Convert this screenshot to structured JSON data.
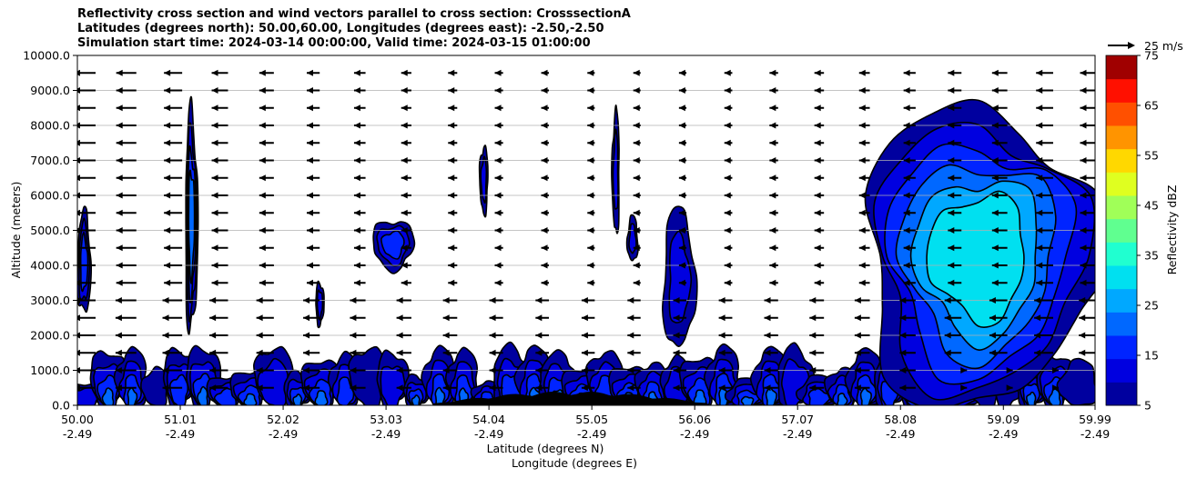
{
  "chart_data": {
    "type": "contour",
    "title_lines": [
      "Reflectivity cross section and wind vectors parallel to cross section: CrosssectionA",
      "Latitudes (degrees north): 50.00,60.00, Longitudes (degrees east): -2.50,-2.50",
      "Simulation start time: 2024-03-14 00:00:00, Valid time: 2024-03-15 01:00:00"
    ],
    "xlabel_lines": [
      "Latitude (degrees N)",
      "Longitude (degrees E)"
    ],
    "ylabel": "Altitude (meters)",
    "x_ticks": [
      {
        "x": 50.0,
        "lat": "50.00",
        "lon": "-2.49"
      },
      {
        "x": 51.01,
        "lat": "51.01",
        "lon": "-2.49"
      },
      {
        "x": 52.02,
        "lat": "52.02",
        "lon": "-2.49"
      },
      {
        "x": 53.03,
        "lat": "53.03",
        "lon": "-2.49"
      },
      {
        "x": 54.04,
        "lat": "54.04",
        "lon": "-2.49"
      },
      {
        "x": 55.05,
        "lat": "55.05",
        "lon": "-2.49"
      },
      {
        "x": 56.06,
        "lat": "56.06",
        "lon": "-2.49"
      },
      {
        "x": 57.07,
        "lat": "57.07",
        "lon": "-2.49"
      },
      {
        "x": 58.08,
        "lat": "58.08",
        "lon": "-2.49"
      },
      {
        "x": 59.09,
        "lat": "59.09",
        "lon": "-2.49"
      },
      {
        "x": 59.99,
        "lat": "59.99",
        "lon": "-2.49"
      }
    ],
    "xlim": [
      50.0,
      59.99
    ],
    "ylim": [
      0,
      10000
    ],
    "y_ticks": [
      {
        "v": 0,
        "label": "0.0"
      },
      {
        "v": 1000,
        "label": "1000.0"
      },
      {
        "v": 2000,
        "label": "2000.0"
      },
      {
        "v": 3000,
        "label": "3000.0"
      },
      {
        "v": 4000,
        "label": "4000.0"
      },
      {
        "v": 5000,
        "label": "5000.0"
      },
      {
        "v": 6000,
        "label": "6000.0"
      },
      {
        "v": 7000,
        "label": "7000.0"
      },
      {
        "v": 8000,
        "label": "8000.0"
      },
      {
        "v": 9000,
        "label": "9000.0"
      },
      {
        "v": 10000,
        "label": "10000.0"
      }
    ],
    "grid": "horizontal",
    "colorbar": {
      "label": "Reflectivity dBZ",
      "levels": [
        5,
        10,
        15,
        20,
        25,
        30,
        35,
        40,
        45,
        50,
        55,
        60,
        65,
        70,
        75
      ],
      "tick_labels": [
        {
          "v": 5,
          "label": "5"
        },
        {
          "v": 15,
          "label": "15"
        },
        {
          "v": 25,
          "label": "25"
        },
        {
          "v": 35,
          "label": "35"
        },
        {
          "v": 45,
          "label": "45"
        },
        {
          "v": 55,
          "label": "55"
        },
        {
          "v": 65,
          "label": "65"
        },
        {
          "v": 75,
          "label": "75"
        }
      ],
      "colors": [
        "#00009f",
        "#0000e0",
        "#0024ff",
        "#0068ff",
        "#00a8ff",
        "#00e0f0",
        "#20ffd0",
        "#60ff90",
        "#a0ff58",
        "#dfff20",
        "#ffd800",
        "#ff9400",
        "#ff5000",
        "#ff1000",
        "#a00000"
      ]
    },
    "wind_key": {
      "label": "25 m/s",
      "speed": 25
    },
    "vectors": {
      "altitudes": [
        500,
        1000,
        1500,
        2000,
        2500,
        3000,
        3500,
        4000,
        4500,
        5000,
        5500,
        6000,
        6500,
        7000,
        7500,
        8000,
        8500,
        9000,
        9500
      ],
      "latitudes": [
        50.0,
        50.4,
        50.85,
        51.3,
        51.75,
        52.2,
        52.65,
        53.1,
        53.55,
        54.0,
        54.45,
        54.9,
        55.35,
        55.8,
        56.25,
        56.7,
        57.15,
        57.6,
        58.05,
        58.5,
        58.95,
        59.4,
        59.85
      ]
    },
    "reflectivity_cells": [
      {
        "x": [
          50.0,
          50.13
        ],
        "top": 5500,
        "base": 2600,
        "max": 15
      },
      {
        "x": [
          51.06,
          51.18
        ],
        "top": 8350,
        "base": 2100,
        "max": 20
      },
      {
        "x": [
          52.34,
          52.42
        ],
        "top": 3500,
        "base": 2300,
        "max": 10
      },
      {
        "x": [
          52.9,
          53.3
        ],
        "top": 5300,
        "base": 3900,
        "max": 15
      },
      {
        "x": [
          53.95,
          54.03
        ],
        "top": 7400,
        "base": 5500,
        "max": 10
      },
      {
        "x": [
          55.25,
          55.32
        ],
        "top": 8400,
        "base": 4900,
        "max": 10
      },
      {
        "x": [
          55.4,
          55.5
        ],
        "top": 5400,
        "base": 4100,
        "max": 10
      },
      {
        "x": [
          55.75,
          56.06
        ],
        "top": 5600,
        "base": 1600,
        "max": 10
      },
      {
        "x": [
          57.7,
          59.99
        ],
        "top": 8500,
        "base": 0,
        "max": 30
      }
    ],
    "low_level_band": {
      "x": [
        50.0,
        59.99
      ],
      "top": 2300,
      "base": 0,
      "max": 30
    },
    "terrain": {
      "x": [
        53.5,
        56.2
      ],
      "max_height": 400
    }
  }
}
